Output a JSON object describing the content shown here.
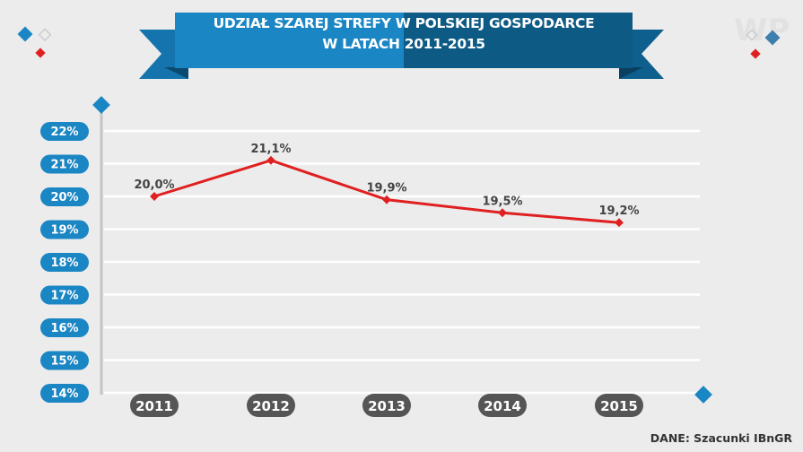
{
  "title_line1": "UDZIAŁ SZAREJ STREFY W POLSKIEJ GOSPODARCE",
  "title_line2": "W LATACH 2011-2015",
  "source": "DANE: Szacunki IBnGR",
  "logo_text": "WP",
  "colors": {
    "blue": "#1b86c4",
    "dark_blue": "#0d5a85",
    "red": "#e02020",
    "pill": "#555555",
    "grid": "#ffffff"
  },
  "chart_data": {
    "type": "line",
    "title": "UDZIAŁ SZAREJ STREFY W POLSKIEJ GOSPODARCE W LATACH 2011-2015",
    "categories": [
      "2011",
      "2012",
      "2013",
      "2014",
      "2015"
    ],
    "values": [
      20.0,
      21.1,
      19.9,
      19.5,
      19.2
    ],
    "data_labels": [
      "20,0%",
      "21,1%",
      "19,9%",
      "19,5%",
      "19,2%"
    ],
    "yticks": [
      "14%",
      "15%",
      "16%",
      "17%",
      "18%",
      "19%",
      "20%",
      "21%",
      "22%"
    ],
    "ylim": [
      14,
      22
    ],
    "grid": true,
    "xlabel": "",
    "ylabel": ""
  }
}
